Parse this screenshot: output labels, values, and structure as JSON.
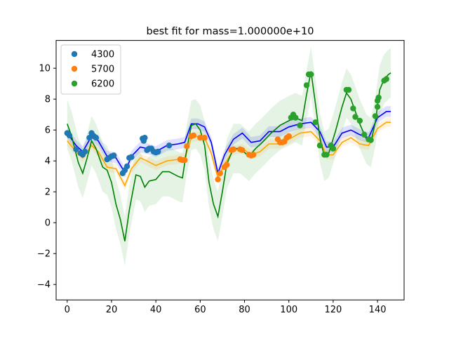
{
  "chart_data": {
    "type": "scatter",
    "title": "best fit for mass=1.000000e+10",
    "xlabel": "",
    "ylabel": "",
    "xlim": [
      -5,
      152
    ],
    "ylim": [
      -5,
      11.8
    ],
    "xticks": [
      0,
      20,
      40,
      60,
      80,
      100,
      120,
      140
    ],
    "yticks": [
      -4,
      -2,
      0,
      2,
      4,
      6,
      8,
      10
    ],
    "grid": false,
    "legend": {
      "placement": "top-left"
    },
    "series": [
      {
        "name": "4300",
        "point_color": "#1f77b4",
        "fit_color": "#0000ff",
        "band_color": "#0000ff",
        "points": [
          [
            0,
            5.8
          ],
          [
            1,
            5.65
          ],
          [
            4,
            4.75
          ],
          [
            6,
            4.5
          ],
          [
            7,
            4.4
          ],
          [
            8,
            4.6
          ],
          [
            10,
            5.5
          ],
          [
            11,
            5.8
          ],
          [
            12,
            5.6
          ],
          [
            13,
            5.5
          ],
          [
            18,
            4.1
          ],
          [
            19,
            4.2
          ],
          [
            20,
            4.3
          ],
          [
            21,
            4.35
          ],
          [
            25,
            3.2
          ],
          [
            26,
            3.4
          ],
          [
            27,
            3.65
          ],
          [
            28,
            4.2
          ],
          [
            29,
            4.25
          ],
          [
            34,
            5.45
          ],
          [
            34.5,
            5.3
          ],
          [
            35,
            5.5
          ],
          [
            36,
            4.7
          ],
          [
            36.5,
            4.75
          ],
          [
            37,
            4.8
          ],
          [
            38,
            4.8
          ],
          [
            39,
            4.6
          ],
          [
            40,
            4.55
          ],
          [
            41,
            4.6
          ],
          [
            46,
            5.0
          ]
        ],
        "fit": [
          [
            0,
            5.8
          ],
          [
            4,
            5.0
          ],
          [
            7,
            4.6
          ],
          [
            11,
            5.6
          ],
          [
            14,
            5.3
          ],
          [
            18,
            4.3
          ],
          [
            22,
            4.2
          ],
          [
            26,
            3.25
          ],
          [
            29,
            4.3
          ],
          [
            33,
            4.9
          ],
          [
            36,
            4.8
          ],
          [
            40,
            4.6
          ],
          [
            45,
            5.0
          ],
          [
            50,
            5.1
          ],
          [
            53,
            5.2
          ],
          [
            56,
            6.4
          ],
          [
            59,
            6.4
          ],
          [
            62,
            6.2
          ],
          [
            65,
            5.2
          ],
          [
            68,
            3.2
          ],
          [
            71,
            4.4
          ],
          [
            75,
            5.4
          ],
          [
            79,
            5.8
          ],
          [
            83,
            5.2
          ],
          [
            87,
            5.3
          ],
          [
            91,
            5.9
          ],
          [
            96,
            5.9
          ],
          [
            100,
            6.2
          ],
          [
            105,
            6.4
          ],
          [
            110,
            6.5
          ],
          [
            114,
            5.9
          ],
          [
            117,
            4.9
          ],
          [
            120,
            4.9
          ],
          [
            124,
            5.8
          ],
          [
            128,
            6.0
          ],
          [
            132,
            5.7
          ],
          [
            136,
            5.5
          ],
          [
            140,
            6.8
          ],
          [
            144,
            7.2
          ],
          [
            146,
            7.2
          ]
        ],
        "band_width": 0.35
      },
      {
        "name": "5700",
        "point_color": "#ff7f0e",
        "fit_color": "#ffa500",
        "band_color": "#ffa500",
        "points": [
          [
            51,
            4.1
          ],
          [
            52,
            4.05
          ],
          [
            53,
            4.05
          ],
          [
            54,
            4.95
          ],
          [
            56,
            5.6
          ],
          [
            57,
            5.65
          ],
          [
            60,
            5.5
          ],
          [
            62,
            5.5
          ],
          [
            68,
            2.8
          ],
          [
            69,
            3.2
          ],
          [
            71,
            3.6
          ],
          [
            72,
            3.75
          ],
          [
            74,
            4.7
          ],
          [
            75,
            4.75
          ],
          [
            78,
            4.75
          ],
          [
            79,
            4.7
          ],
          [
            82,
            4.4
          ],
          [
            83,
            4.35
          ],
          [
            84,
            4.4
          ],
          [
            95,
            5.4
          ],
          [
            96,
            5.2
          ],
          [
            97,
            5.2
          ],
          [
            98,
            5.25
          ],
          [
            99,
            5.5
          ],
          [
            100,
            5.6
          ]
        ],
        "fit": [
          [
            0,
            5.3
          ],
          [
            4,
            4.6
          ],
          [
            7,
            4.2
          ],
          [
            11,
            5.0
          ],
          [
            14,
            4.6
          ],
          [
            18,
            3.6
          ],
          [
            22,
            3.5
          ],
          [
            26,
            2.4
          ],
          [
            29,
            3.5
          ],
          [
            33,
            4.2
          ],
          [
            36,
            4.0
          ],
          [
            40,
            3.7
          ],
          [
            45,
            4.0
          ],
          [
            50,
            4.1
          ],
          [
            53,
            4.2
          ],
          [
            56,
            5.5
          ],
          [
            59,
            5.6
          ],
          [
            62,
            5.5
          ],
          [
            65,
            4.5
          ],
          [
            68,
            2.9
          ],
          [
            71,
            3.8
          ],
          [
            75,
            4.7
          ],
          [
            79,
            4.8
          ],
          [
            83,
            4.4
          ],
          [
            87,
            4.6
          ],
          [
            91,
            5.1
          ],
          [
            96,
            5.1
          ],
          [
            100,
            5.4
          ],
          [
            105,
            5.8
          ],
          [
            110,
            5.9
          ],
          [
            114,
            5.3
          ],
          [
            117,
            4.4
          ],
          [
            120,
            4.4
          ],
          [
            124,
            5.2
          ],
          [
            128,
            5.5
          ],
          [
            132,
            5.1
          ],
          [
            136,
            5.0
          ],
          [
            140,
            6.1
          ],
          [
            144,
            6.5
          ],
          [
            146,
            6.5
          ]
        ],
        "band_width": 0.3
      },
      {
        "name": "6200",
        "point_color": "#2ca02c",
        "fit_color": "#008000",
        "band_color": "#2ca02c",
        "points": [
          [
            101,
            6.8
          ],
          [
            102,
            7.0
          ],
          [
            103,
            6.8
          ],
          [
            105,
            6.3
          ],
          [
            108,
            8.9
          ],
          [
            109,
            9.6
          ],
          [
            110,
            9.6
          ],
          [
            112,
            6.5
          ],
          [
            114,
            5.0
          ],
          [
            116,
            4.4
          ],
          [
            117,
            4.4
          ],
          [
            119,
            5.0
          ],
          [
            120,
            4.8
          ],
          [
            126,
            8.6
          ],
          [
            127,
            8.6
          ],
          [
            129,
            7.4
          ],
          [
            130,
            6.85
          ],
          [
            132,
            6.6
          ],
          [
            134,
            5.7
          ],
          [
            136,
            5.4
          ],
          [
            137,
            5.35
          ],
          [
            139,
            6.9
          ],
          [
            140,
            7.9
          ],
          [
            140.5,
            8.1
          ],
          [
            140,
            7.5
          ],
          [
            143,
            9.2
          ],
          [
            144,
            9.3
          ]
        ],
        "fit": [
          [
            0,
            6.4
          ],
          [
            2,
            5.6
          ],
          [
            5,
            3.9
          ],
          [
            7,
            3.2
          ],
          [
            9,
            4.2
          ],
          [
            11,
            5.3
          ],
          [
            13,
            4.8
          ],
          [
            16,
            3.6
          ],
          [
            18,
            3.4
          ],
          [
            20,
            2.6
          ],
          [
            22,
            1.2
          ],
          [
            24,
            0.2
          ],
          [
            26,
            -1.2
          ],
          [
            28,
            0.8
          ],
          [
            31,
            3.1
          ],
          [
            33,
            3.0
          ],
          [
            35,
            2.3
          ],
          [
            37,
            2.7
          ],
          [
            40,
            2.8
          ],
          [
            43,
            3.3
          ],
          [
            46,
            3.3
          ],
          [
            50,
            3.0
          ],
          [
            52,
            2.9
          ],
          [
            54,
            4.8
          ],
          [
            56,
            6.3
          ],
          [
            58,
            6.4
          ],
          [
            60,
            6.0
          ],
          [
            62,
            5.0
          ],
          [
            64,
            2.6
          ],
          [
            66,
            1.2
          ],
          [
            68,
            0.4
          ],
          [
            70,
            2.0
          ],
          [
            72,
            3.8
          ],
          [
            75,
            4.8
          ],
          [
            78,
            4.8
          ],
          [
            82,
            4.3
          ],
          [
            85,
            4.8
          ],
          [
            88,
            5.2
          ],
          [
            92,
            5.8
          ],
          [
            96,
            6.3
          ],
          [
            100,
            6.6
          ],
          [
            103,
            6.8
          ],
          [
            106,
            6.6
          ],
          [
            108,
            8.3
          ],
          [
            110,
            9.8
          ],
          [
            112,
            7.7
          ],
          [
            114,
            5.5
          ],
          [
            116,
            4.3
          ],
          [
            118,
            4.5
          ],
          [
            121,
            5.9
          ],
          [
            124,
            7.5
          ],
          [
            126,
            8.4
          ],
          [
            128,
            8.0
          ],
          [
            130,
            7.2
          ],
          [
            132,
            6.4
          ],
          [
            135,
            5.4
          ],
          [
            137,
            5.2
          ],
          [
            139,
            6.5
          ],
          [
            141,
            8.6
          ],
          [
            143,
            9.3
          ],
          [
            145,
            9.6
          ],
          [
            146,
            9.7
          ]
        ],
        "band_width": 1.6
      }
    ]
  }
}
